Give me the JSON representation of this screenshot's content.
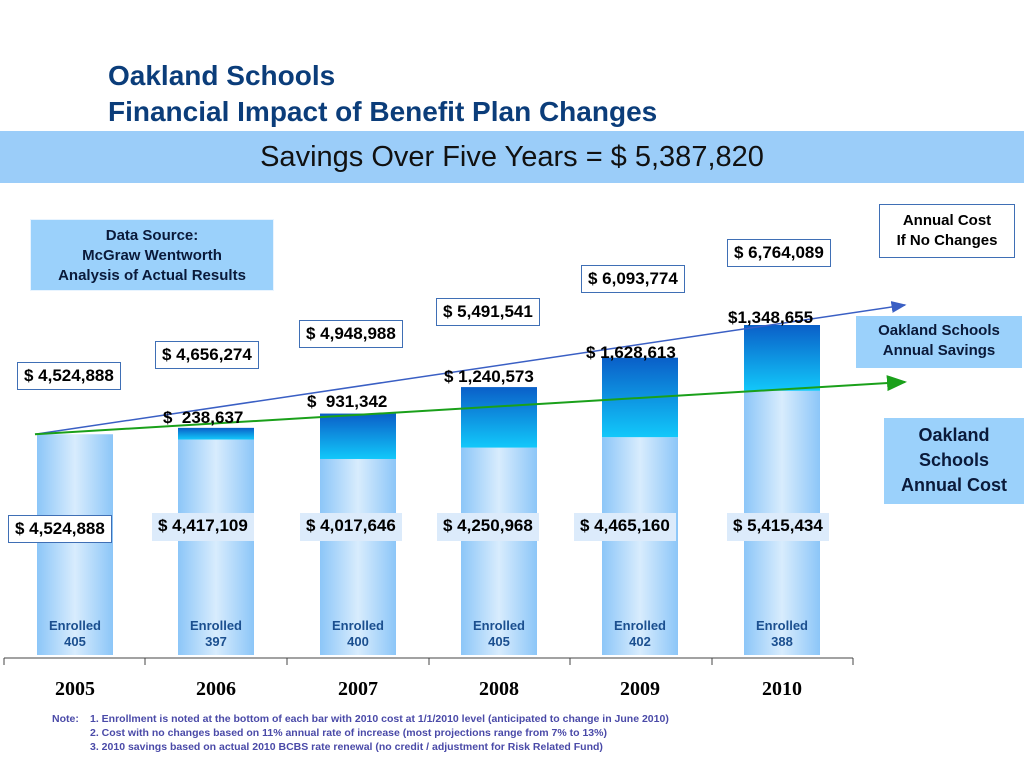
{
  "header": {
    "title_line1": "Oakland Schools",
    "title_line2": "Financial Impact of Benefit Plan Changes",
    "banner": "Savings Over Five Years = $ 5,387,820"
  },
  "data_source": {
    "line1": "Data Source:",
    "line2": "McGraw Wentworth",
    "line3": "Analysis of Actual Results"
  },
  "legend": {
    "cost_if_no_changes_line1": "Annual Cost",
    "cost_if_no_changes_line2": "If No Changes",
    "savings_line1": "Oakland Schools",
    "savings_line2": "Annual Savings",
    "cost_line1": "Oakland",
    "cost_line2": "Schools",
    "cost_line3": "Annual Cost"
  },
  "colors": {
    "title": "#0b3d7a",
    "banner": "#9bcdf9",
    "cost_bar": "#9fd0fb",
    "savings_bar_top": "#0a5fc8",
    "savings_bar_bottom": "#12c8fa",
    "no_change_line": "#3a5fc4",
    "cost_trend_line": "#1aa01a"
  },
  "chart_data": {
    "type": "bar",
    "stacked": true,
    "categories": [
      "2005",
      "2006",
      "2007",
      "2008",
      "2009",
      "2010"
    ],
    "series": [
      {
        "name": "Oakland Schools Annual Cost",
        "values": [
          4524888,
          4417109,
          4017646,
          4250968,
          4465160,
          5415434
        ],
        "labels": [
          "$ 4,524,888",
          "$ 4,417,109",
          "$ 4,017,646",
          "$ 4,250,968",
          "$ 4,465,160",
          "$ 5,415,434"
        ]
      },
      {
        "name": "Oakland Schools Annual Savings",
        "values": [
          0,
          238637,
          931342,
          1240573,
          1628613,
          1348655
        ],
        "labels": [
          "",
          "$  238,637",
          "$  931,342",
          "$ 1,240,573",
          "$ 1,628,613",
          "$1,348,655"
        ]
      }
    ],
    "annual_cost_if_no_changes": {
      "name": "Annual Cost If No Changes",
      "values": [
        4524888,
        4656274,
        4948988,
        5491541,
        6093774,
        6764089
      ],
      "labels": [
        "$ 4,524,888",
        "$ 4,656,274",
        "$ 4,948,988",
        "$ 5,491,541",
        "$ 6,093,774",
        "$ 6,764,089"
      ]
    },
    "enrollment": {
      "prefix": "Enrolled",
      "values": [
        "405",
        "397",
        "400",
        "405",
        "402",
        "388"
      ]
    },
    "ylim": [
      0,
      7000000
    ]
  },
  "notes": {
    "label": "Note:",
    "lines": [
      "1. Enrollment is noted at the bottom of each bar with 2010 cost at 1/1/2010 level (anticipated to change in June 2010)",
      "2. Cost with no changes based on 11% annual rate of increase (most projections range from 7% to 13%)",
      "3. 2010 savings based on actual 2010 BCBS rate renewal (no credit  / adjustment for Risk Related Fund)"
    ]
  }
}
